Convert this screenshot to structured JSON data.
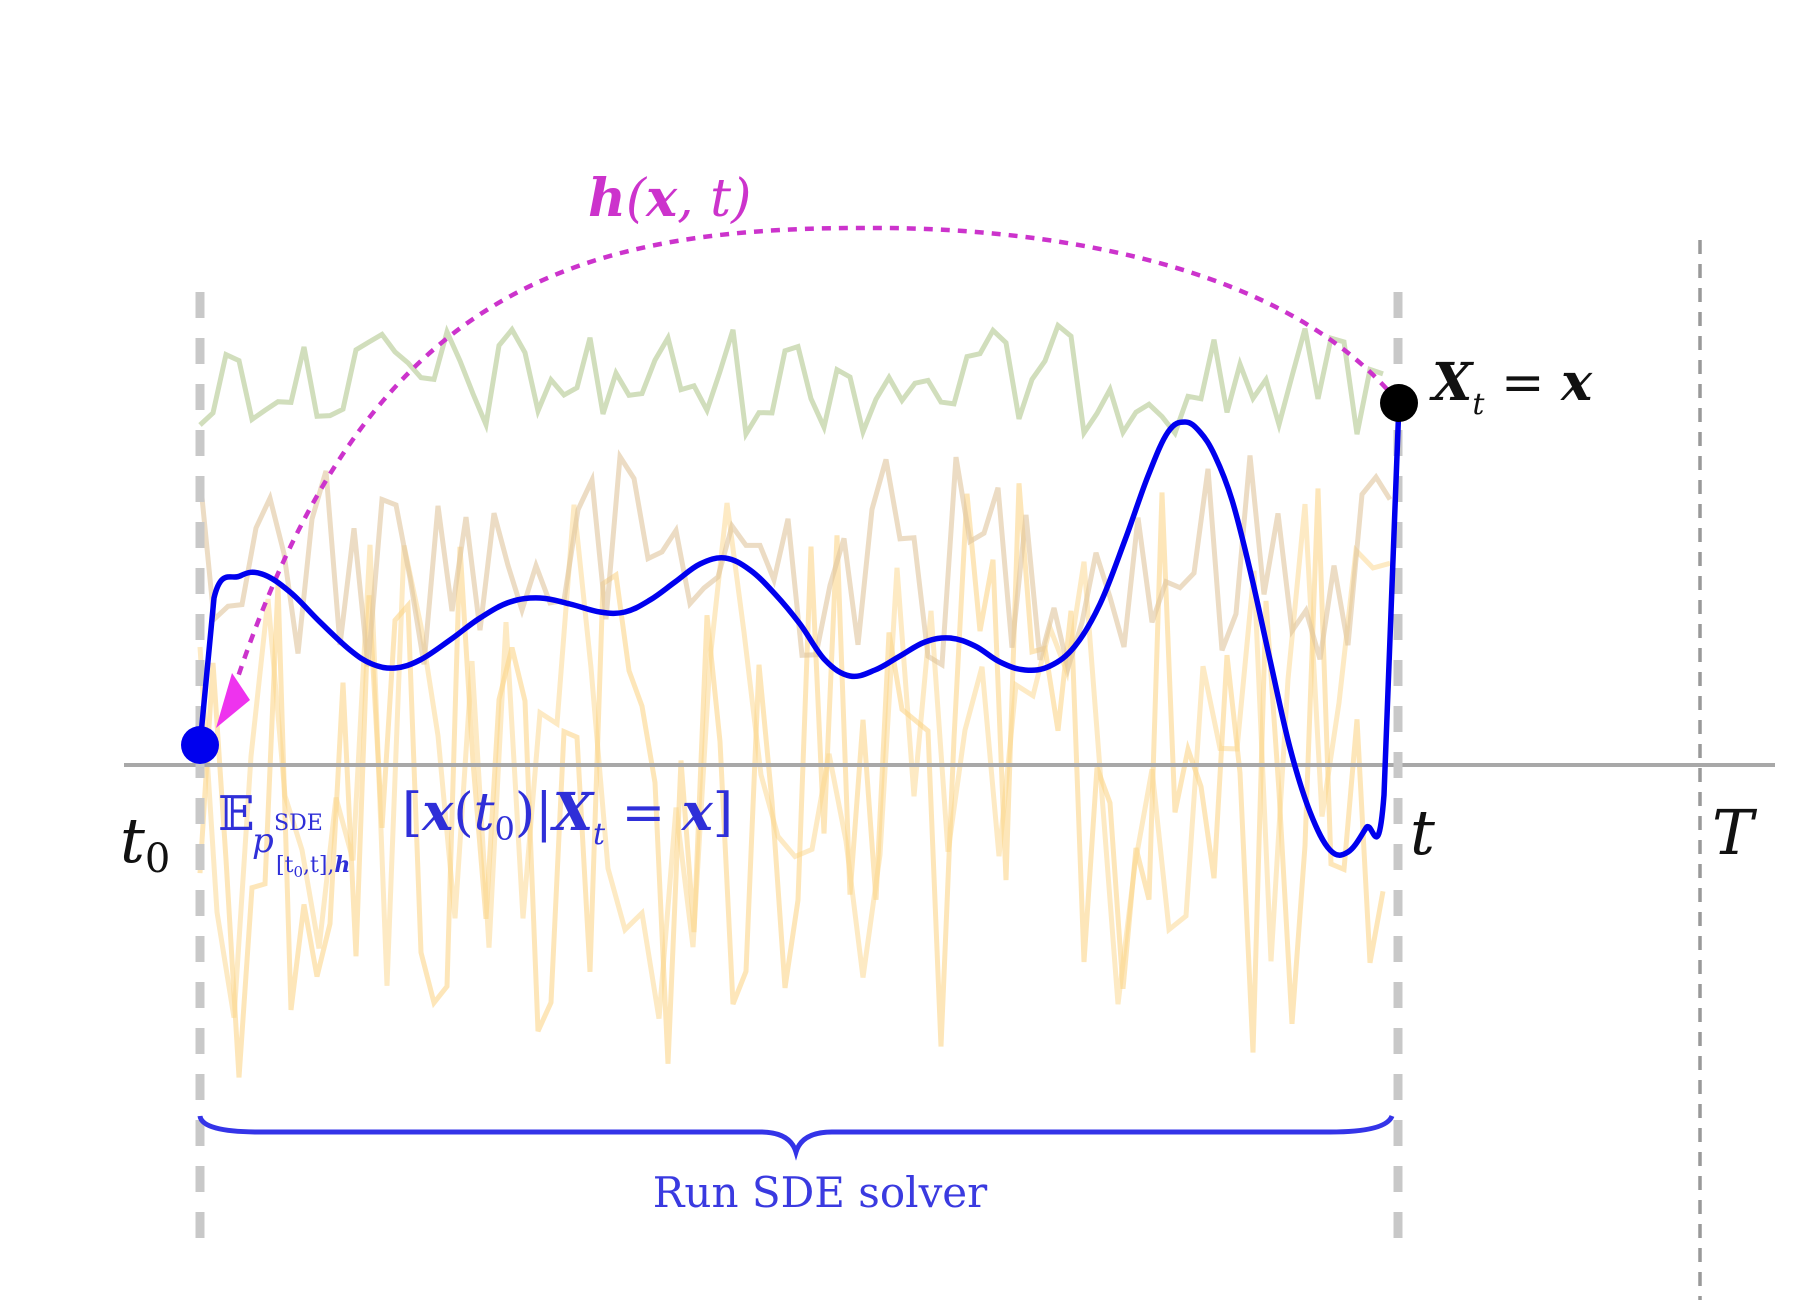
{
  "labels": {
    "h_function": "h(x, t)",
    "endpoint": "X_t = x",
    "t0": "t0",
    "t": "t",
    "T": "T",
    "expectation": "E_{p^SDE_[t0,t],h}[x(t0)|X_t = x]",
    "brace_caption": "Run SDE solver"
  },
  "colors": {
    "axis": "#a8a8a8",
    "dashed_guides": "#c8c8c8",
    "T_guide": "#999999",
    "main_path": "#0000ee",
    "h_arc": "#cc33cc",
    "arrow_head": "#ee33ee",
    "start_dot": "#0000ee",
    "end_dot": "#000000",
    "green_path": "#b9cc98",
    "brown_path": "#dfc49c",
    "yellow_path": "#fcd68a",
    "brace": "#3434e8",
    "caption": "#3a3ae0",
    "expectation_text": "#2f2fd8"
  },
  "icons": {
    "start": "filled-circle",
    "end": "filled-circle",
    "arrow": "triangle-arrowhead"
  }
}
